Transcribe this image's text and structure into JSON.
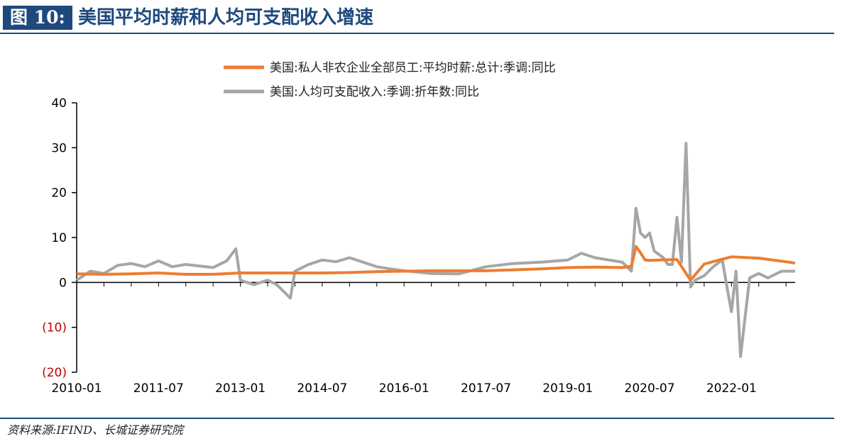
{
  "figure": {
    "number_label": "图 10:",
    "title": "美国平均时薪和人均可支配收入增速",
    "source": "资料来源:IFIND、长城证券研究院"
  },
  "colors": {
    "title_blue": "#1f497d",
    "series_wage": "#ed7d31",
    "series_income": "#a6a6a6",
    "negative_tick": "#c00000"
  },
  "chart_data": {
    "type": "line",
    "title": "",
    "xlabel": "",
    "ylabel": "",
    "ylim": [
      -20,
      40
    ],
    "yticks": [
      40,
      30,
      20,
      10,
      0,
      -10,
      -20
    ],
    "ytick_labels": [
      "40",
      "30",
      "20",
      "10",
      "0",
      "(10)",
      "(20)"
    ],
    "xticks": [
      "2010-01",
      "2011-07",
      "2013-01",
      "2014-07",
      "2016-01",
      "2017-07",
      "2019-01",
      "2020-07",
      "2022-01"
    ],
    "xrange": [
      "2010-01",
      "2023-03"
    ],
    "grid": false,
    "legend_position": "top",
    "series": [
      {
        "name": "美国:私人非农企业全部员工:平均时薪:总计:季调:同比",
        "color": "#ed7d31",
        "points": [
          [
            "2010-01",
            1.9
          ],
          [
            "2010-07",
            1.8
          ],
          [
            "2011-01",
            1.9
          ],
          [
            "2011-07",
            2.1
          ],
          [
            "2012-01",
            1.8
          ],
          [
            "2012-07",
            1.8
          ],
          [
            "2013-01",
            2.1
          ],
          [
            "2013-07",
            2.1
          ],
          [
            "2014-01",
            2.1
          ],
          [
            "2014-07",
            2.1
          ],
          [
            "2015-01",
            2.2
          ],
          [
            "2015-07",
            2.4
          ],
          [
            "2016-01",
            2.5
          ],
          [
            "2016-07",
            2.6
          ],
          [
            "2017-01",
            2.6
          ],
          [
            "2017-07",
            2.6
          ],
          [
            "2018-01",
            2.8
          ],
          [
            "2018-07",
            3.0
          ],
          [
            "2019-01",
            3.3
          ],
          [
            "2019-07",
            3.4
          ],
          [
            "2020-01",
            3.3
          ],
          [
            "2020-03",
            3.6
          ],
          [
            "2020-04",
            8.0
          ],
          [
            "2020-05",
            6.6
          ],
          [
            "2020-06",
            5.0
          ],
          [
            "2020-07",
            4.9
          ],
          [
            "2021-01",
            5.1
          ],
          [
            "2021-04",
            0.5
          ],
          [
            "2021-07",
            4.1
          ],
          [
            "2022-01",
            5.7
          ],
          [
            "2022-07",
            5.4
          ],
          [
            "2023-01",
            4.6
          ],
          [
            "2023-03",
            4.3
          ]
        ]
      },
      {
        "name": "美国:人均可支配收入:季调:折年数:同比",
        "color": "#a6a6a6",
        "points": [
          [
            "2010-01",
            0.5
          ],
          [
            "2010-04",
            2.5
          ],
          [
            "2010-07",
            2.0
          ],
          [
            "2010-10",
            3.8
          ],
          [
            "2011-01",
            4.2
          ],
          [
            "2011-04",
            3.5
          ],
          [
            "2011-07",
            4.8
          ],
          [
            "2011-10",
            3.5
          ],
          [
            "2012-01",
            4.0
          ],
          [
            "2012-07",
            3.3
          ],
          [
            "2012-10",
            4.8
          ],
          [
            "2012-12",
            7.5
          ],
          [
            "2013-01",
            0.5
          ],
          [
            "2013-04",
            -0.5
          ],
          [
            "2013-07",
            0.5
          ],
          [
            "2013-09",
            -0.5
          ],
          [
            "2013-12",
            -3.5
          ],
          [
            "2014-01",
            2.5
          ],
          [
            "2014-04",
            4.0
          ],
          [
            "2014-07",
            5.0
          ],
          [
            "2014-10",
            4.6
          ],
          [
            "2015-01",
            5.5
          ],
          [
            "2015-04",
            4.5
          ],
          [
            "2015-07",
            3.5
          ],
          [
            "2015-10",
            3.0
          ],
          [
            "2016-01",
            2.6
          ],
          [
            "2016-07",
            2.0
          ],
          [
            "2017-01",
            1.9
          ],
          [
            "2017-07",
            3.5
          ],
          [
            "2018-01",
            4.2
          ],
          [
            "2018-07",
            4.5
          ],
          [
            "2019-01",
            5.0
          ],
          [
            "2019-04",
            6.5
          ],
          [
            "2019-07",
            5.5
          ],
          [
            "2020-01",
            4.5
          ],
          [
            "2020-03",
            2.5
          ],
          [
            "2020-04",
            16.5
          ],
          [
            "2020-05",
            11.0
          ],
          [
            "2020-06",
            10.0
          ],
          [
            "2020-07",
            11.0
          ],
          [
            "2020-08",
            7.0
          ],
          [
            "2020-10",
            5.5
          ],
          [
            "2020-11",
            4.0
          ],
          [
            "2020-12",
            4.0
          ],
          [
            "2021-01",
            14.5
          ],
          [
            "2021-02",
            4.5
          ],
          [
            "2021-03",
            31.0
          ],
          [
            "2021-04",
            -1.0
          ],
          [
            "2021-05",
            0.5
          ],
          [
            "2021-07",
            1.5
          ],
          [
            "2021-09",
            3.5
          ],
          [
            "2021-11",
            5.0
          ],
          [
            "2021-12",
            -1.0
          ],
          [
            "2022-01",
            -6.5
          ],
          [
            "2022-02",
            2.5
          ],
          [
            "2022-03",
            -16.5
          ],
          [
            "2022-05",
            1.0
          ],
          [
            "2022-07",
            2.0
          ],
          [
            "2022-09",
            1.0
          ],
          [
            "2022-12",
            2.5
          ],
          [
            "2023-03",
            2.5
          ]
        ]
      }
    ]
  }
}
